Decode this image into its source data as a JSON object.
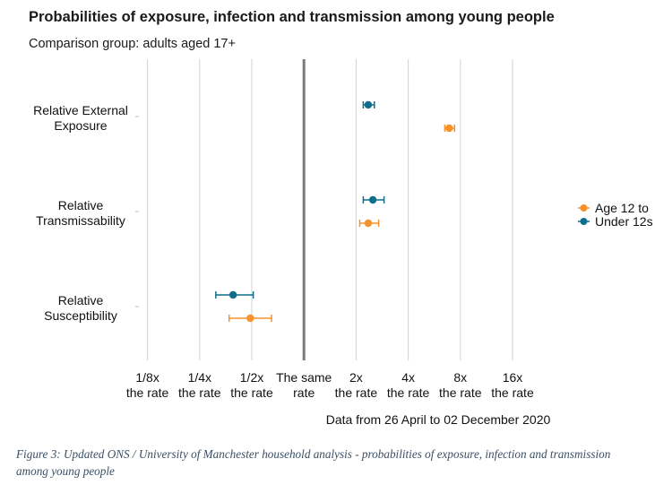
{
  "title": "Probabilities of exposure, infection and transmission among young people",
  "subtitle": "Comparison group: adults aged 17+",
  "footnote": "Data from 26 April to 02 December 2020",
  "caption": "Figure 3: Updated ONS / University of Manchester household analysis - probabilities of exposure, infection and transmission among young people",
  "chart_data": {
    "type": "scatter",
    "x_scale": "log2",
    "xlim": [
      0.09,
      24
    ],
    "reference_line": 1,
    "grid": "vertical",
    "legend_position": "right",
    "x_ticks": [
      {
        "value": 0.125,
        "label": [
          "1/8x",
          "the rate"
        ]
      },
      {
        "value": 0.25,
        "label": [
          "1/4x",
          "the rate"
        ]
      },
      {
        "value": 0.5,
        "label": [
          "1/2x",
          "the rate"
        ]
      },
      {
        "value": 1,
        "label": [
          "The same",
          "rate"
        ]
      },
      {
        "value": 2,
        "label": [
          "2x",
          "the rate"
        ]
      },
      {
        "value": 4,
        "label": [
          "4x",
          "the rate"
        ]
      },
      {
        "value": 8,
        "label": [
          "8x",
          "the rate"
        ]
      },
      {
        "value": 16,
        "label": [
          "16x",
          "the rate"
        ]
      }
    ],
    "categories": [
      {
        "label": [
          "Relative External",
          "Exposure"
        ]
      },
      {
        "label": [
          "Relative",
          "Transmissability"
        ]
      },
      {
        "label": [
          "Relative",
          "Susceptibility"
        ]
      }
    ],
    "series": [
      {
        "name": "Age 12 to",
        "color": "#f5922b",
        "points": [
          {
            "category": 0,
            "estimate": 6.9,
            "low": 6.5,
            "high": 7.4
          },
          {
            "category": 1,
            "estimate": 2.35,
            "low": 2.1,
            "high": 2.7
          },
          {
            "category": 2,
            "estimate": 0.49,
            "low": 0.37,
            "high": 0.65
          }
        ]
      },
      {
        "name": "Under 12s",
        "color": "#0f6e8c",
        "points": [
          {
            "category": 0,
            "estimate": 2.35,
            "low": 2.2,
            "high": 2.55
          },
          {
            "category": 1,
            "estimate": 2.5,
            "low": 2.2,
            "high": 2.9
          },
          {
            "category": 2,
            "estimate": 0.39,
            "low": 0.31,
            "high": 0.51
          }
        ]
      }
    ]
  }
}
